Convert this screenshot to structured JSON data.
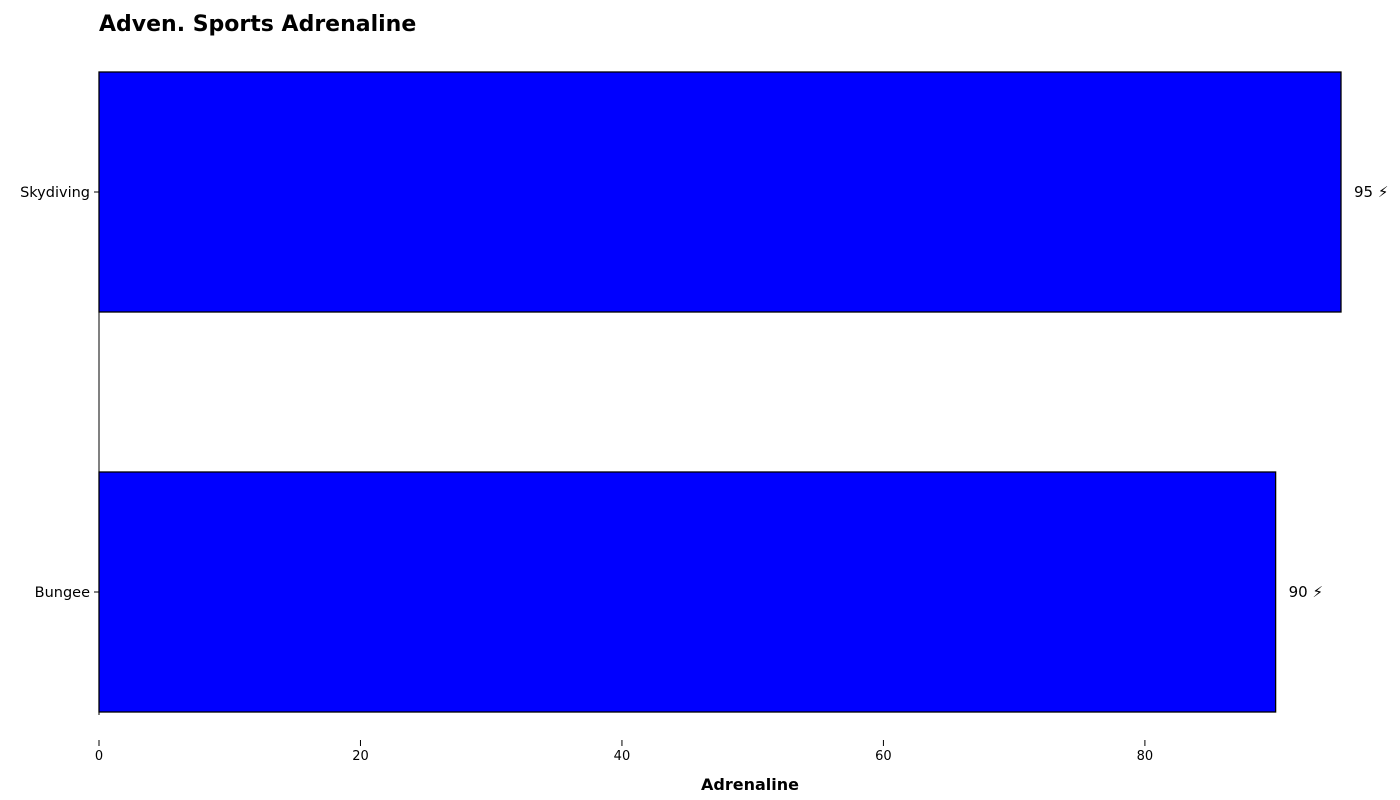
{
  "chart_data": {
    "type": "bar",
    "orientation": "horizontal",
    "title": "Adven. Sports Adrenaline",
    "xlabel": "Adrenaline",
    "ylabel": "",
    "categories": [
      "Skydiving",
      "Bungee"
    ],
    "values": [
      95,
      90
    ],
    "data_labels": [
      "95 ⚡",
      "90 ⚡"
    ],
    "xlim": [
      0,
      95
    ],
    "x_ticks": [
      0,
      20,
      40,
      60,
      80
    ],
    "x_tick_labels": [
      "0",
      "20",
      "40",
      "60",
      "80"
    ],
    "bar_color": "#0000ff",
    "bar_edge_color": "#000000",
    "grid": false,
    "legend": "none"
  }
}
